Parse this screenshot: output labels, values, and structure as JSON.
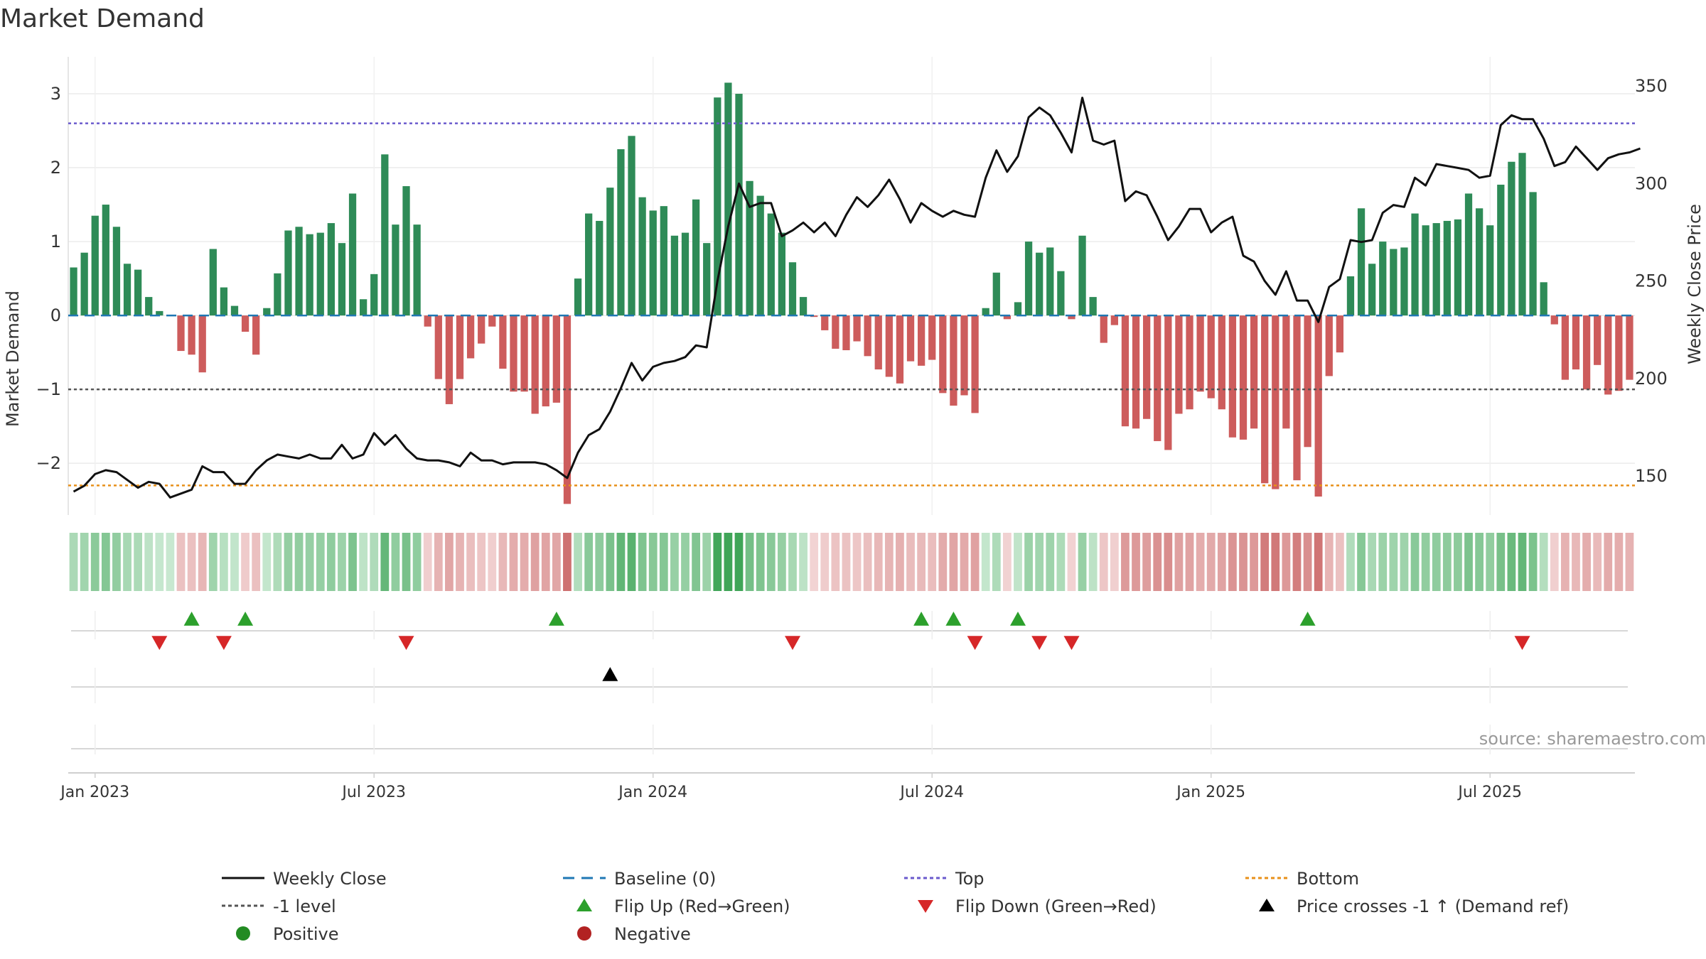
{
  "chart_data": {
    "type": "bar",
    "title": "Market Demand",
    "ylabel": "Market Demand",
    "y2label": "Weekly Close Price",
    "ylim": [
      -2.7,
      3.5
    ],
    "y2lim": [
      130,
      365
    ],
    "yticks": [
      {
        "v": 3,
        "label": "3"
      },
      {
        "v": 2,
        "label": "2"
      },
      {
        "v": 1,
        "label": "1"
      },
      {
        "v": 0,
        "label": "0"
      },
      {
        "v": -1,
        "label": "−1"
      },
      {
        "v": -2,
        "label": "−2"
      }
    ],
    "y2ticks": [
      {
        "v": 350,
        "label": "350"
      },
      {
        "v": 300,
        "label": "300"
      },
      {
        "v": 250,
        "label": "250"
      },
      {
        "v": 200,
        "label": "200"
      },
      {
        "v": 150,
        "label": "150"
      }
    ],
    "xticks": [
      {
        "week": 2,
        "label": "Jan 2023"
      },
      {
        "week": 28,
        "label": "Jul 2023"
      },
      {
        "week": 54,
        "label": "Jan 2024"
      },
      {
        "week": 80,
        "label": "Jul 2024"
      },
      {
        "week": 106,
        "label": "Jan 2025"
      },
      {
        "week": 132,
        "label": "Jul 2025"
      }
    ],
    "reference_lines": {
      "top": 2.6,
      "minus_one": -1.0,
      "bottom": -2.3,
      "baseline": 0
    },
    "demand": [
      0.65,
      0.85,
      1.35,
      1.5,
      1.2,
      0.7,
      0.62,
      0.25,
      0.06,
      0.0,
      -0.48,
      -0.53,
      -0.77,
      0.9,
      0.38,
      0.13,
      -0.22,
      -0.53,
      0.1,
      0.57,
      1.15,
      1.2,
      1.1,
      1.12,
      1.25,
      0.98,
      1.65,
      0.22,
      0.56,
      2.18,
      1.23,
      1.75,
      1.23,
      -0.15,
      -0.86,
      -1.2,
      -0.86,
      -0.58,
      -0.38,
      -0.15,
      -0.72,
      -1.03,
      -1.03,
      -1.33,
      -1.23,
      -1.18,
      -2.55,
      0.5,
      1.38,
      1.28,
      1.73,
      2.25,
      2.43,
      1.6,
      1.42,
      1.48,
      1.08,
      1.12,
      1.57,
      0.98,
      2.95,
      3.15,
      3.0,
      1.82,
      1.62,
      1.38,
      1.12,
      0.72,
      0.25,
      -0.02,
      -0.2,
      -0.45,
      -0.47,
      -0.35,
      -0.55,
      -0.73,
      -0.83,
      -0.92,
      -0.62,
      -0.68,
      -0.6,
      -1.05,
      -1.22,
      -1.08,
      -1.32,
      0.1,
      0.58,
      -0.05,
      0.18,
      1.0,
      0.85,
      0.92,
      0.6,
      -0.05,
      1.08,
      0.25,
      -0.37,
      -0.13,
      -1.5,
      -1.53,
      -1.4,
      -1.7,
      -1.82,
      -1.33,
      -1.27,
      -1.03,
      -1.12,
      -1.27,
      -1.65,
      -1.68,
      -1.53,
      -2.27,
      -2.35,
      -1.53,
      -2.23,
      -1.78,
      -2.45,
      -0.82,
      -0.5,
      0.53,
      1.45,
      0.7,
      1.0,
      0.9,
      0.92,
      1.38,
      1.22,
      1.25,
      1.28,
      1.3,
      1.65,
      1.45,
      1.22,
      1.77,
      2.08,
      2.2,
      1.67,
      0.45,
      -0.12,
      -0.87,
      -0.73,
      -1.0,
      -0.67,
      -1.07,
      -1.02,
      -0.87
    ],
    "weekly_close": [
      142,
      145,
      151,
      153,
      152,
      148,
      144,
      147,
      146,
      139,
      141,
      143,
      155,
      152,
      152,
      146,
      146,
      153,
      158,
      161,
      160,
      159,
      161,
      159,
      159,
      166,
      159,
      161,
      172,
      166,
      171,
      164,
      159,
      158,
      158,
      157,
      155,
      162,
      158,
      158,
      156,
      157,
      157,
      157,
      156,
      153,
      149,
      162,
      171,
      174,
      183,
      195,
      208,
      199,
      206,
      208,
      209,
      211,
      217,
      216,
      250,
      278,
      300,
      288,
      290,
      290,
      273,
      276,
      280,
      275,
      280,
      273,
      284,
      293,
      288,
      294,
      302,
      292,
      280,
      290,
      286,
      283,
      286,
      284,
      283,
      303,
      317,
      306,
      314,
      334,
      339,
      335,
      326,
      316,
      344,
      322,
      320,
      322,
      291,
      296,
      294,
      283,
      271,
      278,
      287,
      287,
      275,
      280,
      283,
      263,
      260,
      250,
      243,
      255,
      240,
      240,
      229,
      247,
      251,
      271,
      270,
      271,
      285,
      289,
      288,
      303,
      299,
      310,
      309,
      308,
      307,
      303,
      304,
      330,
      335,
      333,
      333,
      323,
      309,
      311,
      319,
      313,
      307,
      313,
      315,
      316,
      318
    ],
    "flips_up": [
      11,
      16,
      45,
      79,
      82,
      88,
      115
    ],
    "flips_down": [
      8,
      14,
      31,
      67,
      84,
      90,
      93,
      135
    ],
    "price_cross": [
      50
    ],
    "source": "source: sharemaestro.com",
    "legend": [
      {
        "key": "weekly-close",
        "label": "Weekly Close",
        "marker": "line",
        "color": "#111111"
      },
      {
        "key": "baseline",
        "label": "Baseline (0)",
        "marker": "dashed-line",
        "color": "#1f77b4"
      },
      {
        "key": "top",
        "label": "Top",
        "marker": "dotted-line",
        "color": "#6a5acd"
      },
      {
        "key": "bottom",
        "label": "Bottom",
        "marker": "dotted-line",
        "color": "#e8901a"
      },
      {
        "key": "minus-one",
        "label": "-1 level",
        "marker": "dotted-line",
        "color": "#555555"
      },
      {
        "key": "flip-up",
        "label": "Flip Up (Red→Green)",
        "marker": "triangle-up",
        "color": "#2ca02c"
      },
      {
        "key": "flip-down",
        "label": "Flip Down (Green→Red)",
        "marker": "triangle-down",
        "color": "#d62728"
      },
      {
        "key": "price-cross",
        "label": "Price crosses -1 ↑ (Demand ref)",
        "marker": "triangle-up",
        "color": "#000000"
      },
      {
        "key": "positive",
        "label": "Positive",
        "marker": "circle",
        "color": "#228b22"
      },
      {
        "key": "negative",
        "label": "Negative",
        "marker": "circle",
        "color": "#b22222"
      }
    ]
  }
}
